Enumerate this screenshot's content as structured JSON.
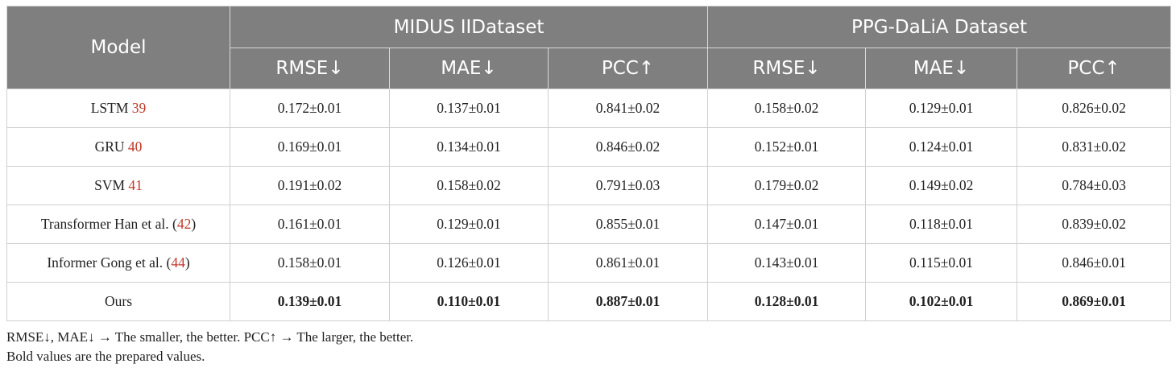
{
  "table": {
    "header": {
      "model": "Model",
      "group1": "MIDUS IIDataset",
      "group2": "PPG-DaLiA Dataset",
      "metrics": [
        "RMSE↓",
        "MAE↓",
        "PCC↑",
        "RMSE↓",
        "MAE↓",
        "PCC↑"
      ]
    },
    "rows": [
      {
        "name": "LSTM ",
        "ref": "39",
        "suffix": "",
        "values": [
          "0.172±0.01",
          "0.137±0.01",
          "0.841±0.02",
          "0.158±0.02",
          "0.129±0.01",
          "0.826±0.02"
        ]
      },
      {
        "name": "GRU ",
        "ref": "40",
        "suffix": "",
        "values": [
          "0.169±0.01",
          "0.134±0.01",
          "0.846±0.02",
          "0.152±0.01",
          "0.124±0.01",
          "0.831±0.02"
        ]
      },
      {
        "name": "SVM ",
        "ref": "41",
        "suffix": "",
        "values": [
          "0.191±0.02",
          "0.158±0.02",
          "0.791±0.03",
          "0.179±0.02",
          "0.149±0.02",
          "0.784±0.03"
        ]
      },
      {
        "name": "Transformer Han et al. (",
        "ref": "42",
        "suffix": ")",
        "values": [
          "0.161±0.01",
          "0.129±0.01",
          "0.855±0.01",
          "0.147±0.01",
          "0.118±0.01",
          "0.839±0.02"
        ]
      },
      {
        "name": "Informer Gong et al. (",
        "ref": "44",
        "suffix": ")",
        "values": [
          "0.158±0.01",
          "0.126±0.01",
          "0.861±0.01",
          "0.143±0.01",
          "0.115±0.01",
          "0.846±0.01"
        ]
      },
      {
        "name": "Ours",
        "ref": "",
        "suffix": "",
        "values": [
          "0.139±0.01",
          "0.110±0.01",
          "0.887±0.01",
          "0.128±0.01",
          "0.102±0.01",
          "0.869±0.01"
        ]
      }
    ]
  },
  "notes": {
    "line1": "RMSE↓, MAE↓ → The smaller, the better. PCC↑ → The larger, the better.",
    "line2": "Bold values are the prepared values."
  },
  "colors": {
    "header_bg": "#7f7f7f",
    "header_text": "#ffffff",
    "ref_link": "#c0392b"
  }
}
